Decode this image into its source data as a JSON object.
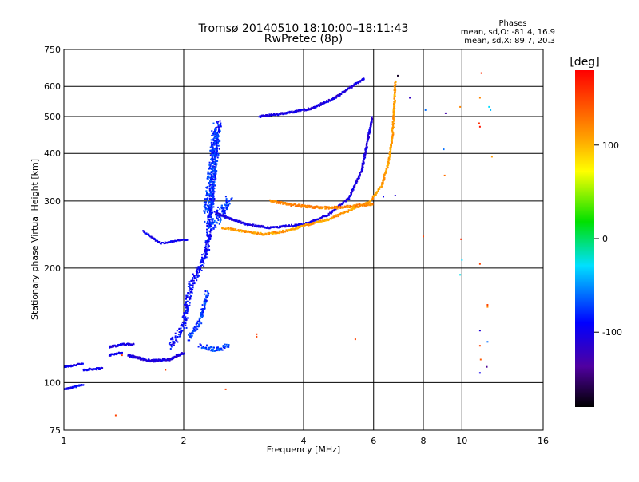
{
  "chart_data": {
    "type": "scatter",
    "title": "Tromsø 20140510 18:10:00–18:11:43",
    "subtitle": "RwPretec (8p)",
    "xlabel": "Frequency [MHz]",
    "ylabel": "Stationary phase Virtual Height [km]",
    "x_scale": "log",
    "y_scale": "log",
    "xlim": [
      1,
      16
    ],
    "ylim": [
      75,
      750
    ],
    "x_ticks": [
      1,
      2,
      4,
      6,
      8,
      10,
      16
    ],
    "x_tick_labels": [
      "1",
      "2",
      "4",
      "6",
      "8",
      "10",
      "16"
    ],
    "y_ticks": [
      75,
      100,
      200,
      300,
      400,
      500,
      600,
      750
    ],
    "y_tick_labels": [
      "75",
      "100",
      "200",
      "300",
      "400",
      "500",
      "600",
      "750"
    ],
    "grid": true,
    "stats": {
      "heading": "Phases",
      "o_line": "mean, sd,O: -81.4, 16.9",
      "x_line": "mean, sd,X:  89.7, 20.3"
    },
    "colorbar": {
      "label": "[deg]",
      "range": [
        -180,
        180
      ],
      "ticks": [
        100,
        0,
        -100
      ],
      "tick_labels": [
        "100",
        "0",
        "-100"
      ],
      "colormap": "rainbow"
    },
    "traces": [
      {
        "segments": [
          [
            [
              1.0,
              110
            ],
            [
              1.06,
              111
            ],
            [
              1.12,
              112
            ]
          ],
          [
            [
              1.12,
              108
            ],
            [
              1.25,
              109
            ]
          ],
          [
            [
              1.3,
              118
            ],
            [
              1.4,
              120
            ]
          ],
          [
            [
              1.3,
              124
            ],
            [
              1.4,
              126
            ],
            [
              1.5,
              126
            ]
          ]
        ],
        "phase": -100,
        "spread": 0.008,
        "density": 14
      },
      {
        "segments": [
          [
            [
              1.0,
              96
            ],
            [
              1.05,
              97
            ],
            [
              1.12,
              99
            ]
          ]
        ],
        "phase": -95,
        "spread": 0.006,
        "density": 14
      },
      {
        "segments": [
          [
            [
              1.45,
              118
            ],
            [
              1.65,
              114
            ],
            [
              1.85,
              115
            ],
            [
              2.0,
              120
            ]
          ]
        ],
        "phase": -105,
        "spread": 0.01,
        "density": 20
      },
      {
        "segments": [
          [
            [
              1.85,
              125
            ],
            [
              2.0,
              140
            ],
            [
              2.05,
              165
            ],
            [
              2.1,
              185
            ],
            [
              2.2,
              200
            ],
            [
              2.3,
              230
            ],
            [
              2.35,
              300
            ],
            [
              2.4,
              420
            ],
            [
              2.45,
              480
            ]
          ]
        ],
        "phase": -90,
        "spread": 0.03,
        "density": 14
      },
      {
        "segments": [
          [
            [
              2.05,
              130
            ],
            [
              2.2,
              145
            ],
            [
              2.3,
              175
            ]
          ],
          [
            [
              2.2,
              125
            ],
            [
              2.4,
              122
            ],
            [
              2.6,
              125
            ]
          ]
        ],
        "phase": -75,
        "spread": 0.02,
        "density": 12
      },
      {
        "segments": [
          [
            [
              2.3,
              280
            ],
            [
              2.35,
              350
            ],
            [
              2.4,
              420
            ],
            [
              2.42,
              470
            ]
          ],
          [
            [
              2.3,
              260
            ],
            [
              2.45,
              270
            ],
            [
              2.6,
              300
            ]
          ]
        ],
        "phase": -75,
        "spread": 0.05,
        "density": 20
      },
      {
        "segments": [
          [
            [
              2.4,
              280
            ],
            [
              2.6,
              270
            ],
            [
              2.9,
              260
            ],
            [
              3.3,
              255
            ],
            [
              4.0,
              260
            ],
            [
              4.6,
              275
            ],
            [
              5.2,
              305
            ],
            [
              5.6,
              360
            ],
            [
              5.8,
              430
            ],
            [
              5.95,
              500
            ]
          ]
        ],
        "phase": -105,
        "spread": 0.008,
        "density": 12
      },
      {
        "segments": [
          [
            [
              2.5,
              255
            ],
            [
              2.8,
              250
            ],
            [
              3.2,
              245
            ],
            [
              3.6,
              250
            ],
            [
              4.0,
              258
            ],
            [
              4.6,
              268
            ],
            [
              5.3,
              285
            ],
            [
              5.9,
              300
            ],
            [
              6.3,
              330
            ],
            [
              6.55,
              380
            ],
            [
              6.7,
              450
            ],
            [
              6.78,
              560
            ],
            [
              6.8,
              620
            ]
          ]
        ],
        "phase": 110,
        "spread": 0.008,
        "density": 12
      },
      {
        "segments": [
          [
            [
              3.3,
              300
            ],
            [
              3.8,
              292
            ],
            [
              4.4,
              288
            ],
            [
              4.9,
              288
            ],
            [
              5.5,
              292
            ],
            [
              6.0,
              295
            ]
          ]
        ],
        "phase": 120,
        "spread": 0.01,
        "density": 14
      },
      {
        "segments": [
          [
            [
              3.1,
              500
            ],
            [
              3.6,
              510
            ],
            [
              4.2,
              525
            ],
            [
              4.8,
              560
            ],
            [
              5.3,
              600
            ],
            [
              5.7,
              630
            ]
          ]
        ],
        "phase": -105,
        "spread": 0.008,
        "density": 14
      },
      {
        "segments": [
          [
            [
              1.58,
              250
            ],
            [
              1.75,
              232
            ],
            [
              2.05,
              238
            ]
          ]
        ],
        "phase": -100,
        "spread": 0.006,
        "density": 10
      }
    ],
    "outliers": [
      {
        "x": 1.35,
        "y": 82,
        "phase": 150
      },
      {
        "x": 1.4,
        "y": 118,
        "phase": 155
      },
      {
        "x": 1.8,
        "y": 108,
        "phase": 150
      },
      {
        "x": 2.55,
        "y": 96,
        "phase": 150
      },
      {
        "x": 3.05,
        "y": 132,
        "phase": 150
      },
      {
        "x": 3.05,
        "y": 134,
        "phase": 155
      },
      {
        "x": 5.4,
        "y": 130,
        "phase": 150
      },
      {
        "x": 6.35,
        "y": 308,
        "phase": -95
      },
      {
        "x": 6.9,
        "y": 640,
        "phase": -170
      },
      {
        "x": 6.8,
        "y": 310,
        "phase": -110
      },
      {
        "x": 7.4,
        "y": 560,
        "phase": -120
      },
      {
        "x": 8.1,
        "y": 520,
        "phase": -60
      },
      {
        "x": 8.0,
        "y": 242,
        "phase": 150
      },
      {
        "x": 9.1,
        "y": 510,
        "phase": -130
      },
      {
        "x": 9.0,
        "y": 410,
        "phase": -60
      },
      {
        "x": 9.05,
        "y": 350,
        "phase": 130
      },
      {
        "x": 9.9,
        "y": 530,
        "phase": 120
      },
      {
        "x": 9.95,
        "y": 238,
        "phase": 160
      },
      {
        "x": 10.0,
        "y": 210,
        "phase": -30
      },
      {
        "x": 9.9,
        "y": 192,
        "phase": -25
      },
      {
        "x": 11.2,
        "y": 650,
        "phase": 160
      },
      {
        "x": 11.1,
        "y": 560,
        "phase": 120
      },
      {
        "x": 11.05,
        "y": 480,
        "phase": 160
      },
      {
        "x": 11.1,
        "y": 470,
        "phase": 170
      },
      {
        "x": 11.7,
        "y": 530,
        "phase": -30
      },
      {
        "x": 11.8,
        "y": 520,
        "phase": -40
      },
      {
        "x": 11.9,
        "y": 392,
        "phase": 110
      },
      {
        "x": 11.1,
        "y": 205,
        "phase": 150
      },
      {
        "x": 11.6,
        "y": 160,
        "phase": 150
      },
      {
        "x": 11.6,
        "y": 158,
        "phase": 120
      },
      {
        "x": 11.1,
        "y": 137,
        "phase": -110
      },
      {
        "x": 11.6,
        "y": 128,
        "phase": -60
      },
      {
        "x": 11.1,
        "y": 125,
        "phase": 150
      },
      {
        "x": 11.15,
        "y": 115,
        "phase": 140
      },
      {
        "x": 11.55,
        "y": 110,
        "phase": -140
      },
      {
        "x": 11.1,
        "y": 106,
        "phase": -100
      }
    ]
  }
}
